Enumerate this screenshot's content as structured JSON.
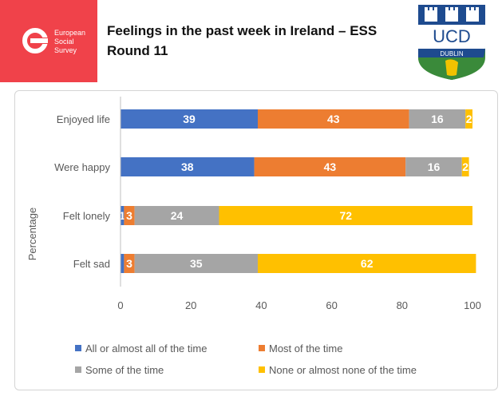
{
  "header": {
    "title_line1": "Feelings in the past week in Ireland – ESS",
    "title_line2": "Round 11",
    "ess_logo": {
      "line1": "European",
      "line2": "Social",
      "line3": "Survey",
      "color": "#f0424a"
    },
    "ucd_logo": {
      "line1": "UCD",
      "line2": "DUBLIN",
      "colors": {
        "blue": "#1e4b8f",
        "green": "#3a8a3a",
        "gold": "#f2c200"
      }
    }
  },
  "chart_data": {
    "type": "bar",
    "orientation": "horizontal",
    "stacked": true,
    "categories": [
      "Enjoyed life",
      "Were happy",
      "Felt lonely",
      "Felt sad"
    ],
    "series": [
      {
        "name": "All or almost all of the time",
        "color": "#4472c4",
        "values": [
          39,
          38,
          1,
          1
        ],
        "labels": [
          "39",
          "38",
          "1",
          ""
        ]
      },
      {
        "name": "Most of the time",
        "color": "#ed7d31",
        "values": [
          43,
          43,
          3,
          3
        ],
        "labels": [
          "43",
          "43",
          "3",
          "3"
        ]
      },
      {
        "name": "Some of the time",
        "color": "#a5a5a5",
        "values": [
          16,
          16,
          24,
          35
        ],
        "labels": [
          "16",
          "16",
          "24",
          "35"
        ]
      },
      {
        "name": "None or almost none of the time",
        "color": "#ffc000",
        "values": [
          2,
          2,
          72,
          62
        ],
        "labels": [
          "2",
          "2",
          "72",
          "62"
        ]
      }
    ],
    "xlim": [
      0,
      100
    ],
    "xticks": [
      "0",
      "20",
      "40",
      "60",
      "80",
      "100"
    ],
    "ylabel": "Percentage",
    "xlabel": "",
    "grid": false,
    "legend_position": "bottom"
  }
}
